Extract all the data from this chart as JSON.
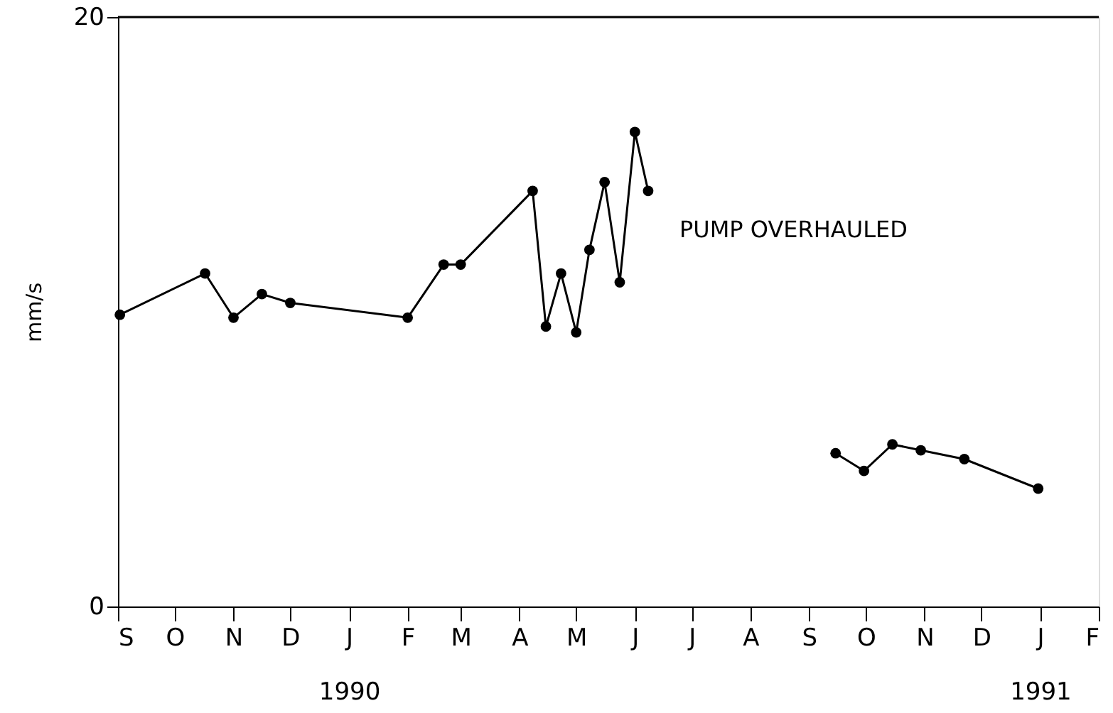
{
  "chart_data": {
    "type": "line",
    "ylabel": "mm/s",
    "ylim": [
      0,
      20
    ],
    "yticks": [
      0,
      20
    ],
    "xlim": [
      "1989-09-01",
      "1991-02-01"
    ],
    "xticks": [
      {
        "value": "1989-09-01",
        "label": "S"
      },
      {
        "value": "1989-10-01",
        "label": "O"
      },
      {
        "value": "1989-11-01",
        "label": "N"
      },
      {
        "value": "1989-12-01",
        "label": "D"
      },
      {
        "value": "1990-01-01",
        "label": "J\n1990"
      },
      {
        "value": "1990-02-01",
        "label": "F"
      },
      {
        "value": "1990-03-01",
        "label": "M"
      },
      {
        "value": "1990-04-01",
        "label": "A"
      },
      {
        "value": "1990-05-01",
        "label": "M"
      },
      {
        "value": "1990-06-01",
        "label": "J"
      },
      {
        "value": "1990-07-01",
        "label": "J"
      },
      {
        "value": "1990-08-01",
        "label": "A"
      },
      {
        "value": "1990-09-01",
        "label": "S"
      },
      {
        "value": "1990-10-01",
        "label": "O"
      },
      {
        "value": "1990-11-01",
        "label": "N"
      },
      {
        "value": "1990-12-01",
        "label": "D"
      },
      {
        "value": "1991-01-01",
        "label": "J\n1991"
      },
      {
        "value": "1991-02-01",
        "label": "F"
      }
    ],
    "series": [
      {
        "color": "#000000",
        "x": [
          "1989-09-02",
          "1989-10-17",
          "1989-11-01",
          "1989-11-16",
          "1989-12-01",
          "1990-02-01",
          "1990-02-20",
          "1990-03-01",
          "1990-04-08",
          "1990-04-15",
          "1990-04-23",
          "1990-05-01",
          "1990-05-08",
          "1990-05-16",
          "1990-05-24",
          "1990-06-01",
          "1990-06-08"
        ],
        "values": [
          9.9,
          11.3,
          9.8,
          10.6,
          10.3,
          9.8,
          11.6,
          11.6,
          14.1,
          9.5,
          11.3,
          9.3,
          12.1,
          14.4,
          11.0,
          16.1,
          14.1
        ]
      },
      {
        "color": "#000000",
        "x": [
          "1990-09-15",
          "1990-09-30",
          "1990-10-15",
          "1990-10-30",
          "1990-11-22",
          "1990-12-31"
        ],
        "values": [
          5.2,
          4.6,
          5.5,
          5.3,
          5.0,
          4.0
        ]
      }
    ],
    "annotations": [
      "PUMP OVERHAULED"
    ],
    "marker": "circle",
    "line_style": "solid",
    "grid": false
  }
}
